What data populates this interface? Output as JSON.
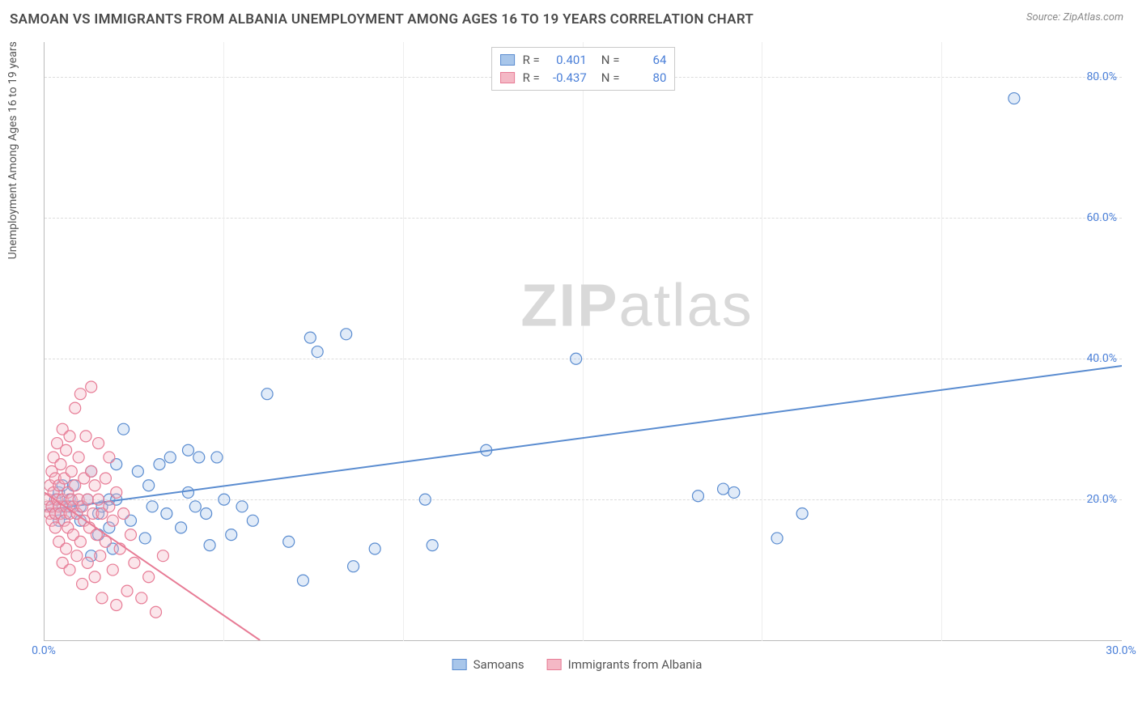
{
  "header": {
    "title": "SAMOAN VS IMMIGRANTS FROM ALBANIA UNEMPLOYMENT AMONG AGES 16 TO 19 YEARS CORRELATION CHART",
    "source_prefix": "Source: ",
    "source_link": "ZipAtlas.com"
  },
  "chart": {
    "type": "scatter",
    "ylabel": "Unemployment Among Ages 16 to 19 years",
    "xlim": [
      0,
      30
    ],
    "ylim": [
      0,
      85
    ],
    "yticks": [
      20,
      40,
      60,
      80
    ],
    "ytick_labels": [
      "20.0%",
      "40.0%",
      "60.0%",
      "80.0%"
    ],
    "xticks": [
      0,
      30
    ],
    "xtick_labels": [
      "0.0%",
      "30.0%"
    ],
    "xgrid_positions": [
      5,
      10,
      15,
      20,
      25
    ],
    "background_color": "#ffffff",
    "grid_color": "#dddddd",
    "axis_color": "#bbbbbb",
    "tick_label_color": "#4a7fd8",
    "watermark": "ZIPatlas",
    "marker_radius": 7,
    "series": [
      {
        "name": "Samoans",
        "color_fill": "#a8c6ea",
        "color_stroke": "#5a8cd0",
        "r": 0.401,
        "n": 64,
        "trend": {
          "x1": 0,
          "y1": 18.5,
          "x2": 30,
          "y2": 39
        },
        "points": [
          [
            0.2,
            19
          ],
          [
            0.3,
            18
          ],
          [
            0.3,
            20
          ],
          [
            0.4,
            21
          ],
          [
            0.4,
            17
          ],
          [
            0.5,
            19
          ],
          [
            0.5,
            22
          ],
          [
            0.6,
            18
          ],
          [
            0.7,
            20
          ],
          [
            0.7,
            19
          ],
          [
            0.8,
            22
          ],
          [
            0.9,
            18
          ],
          [
            1.0,
            19
          ],
          [
            1.0,
            17
          ],
          [
            1.2,
            20
          ],
          [
            1.3,
            24
          ],
          [
            1.3,
            12
          ],
          [
            1.5,
            18
          ],
          [
            1.5,
            15
          ],
          [
            1.6,
            19
          ],
          [
            1.8,
            20
          ],
          [
            1.8,
            16
          ],
          [
            1.9,
            13
          ],
          [
            2.0,
            25
          ],
          [
            2.0,
            20
          ],
          [
            2.2,
            30
          ],
          [
            2.4,
            17
          ],
          [
            2.6,
            24
          ],
          [
            2.8,
            14.5
          ],
          [
            2.9,
            22
          ],
          [
            3.0,
            19
          ],
          [
            3.2,
            25
          ],
          [
            3.4,
            18
          ],
          [
            3.5,
            26
          ],
          [
            3.8,
            16
          ],
          [
            4.0,
            27
          ],
          [
            4.0,
            21
          ],
          [
            4.2,
            19
          ],
          [
            4.3,
            26
          ],
          [
            4.5,
            18
          ],
          [
            4.6,
            13.5
          ],
          [
            4.8,
            26
          ],
          [
            5.0,
            20
          ],
          [
            5.2,
            15
          ],
          [
            5.5,
            19
          ],
          [
            5.8,
            17
          ],
          [
            6.2,
            35
          ],
          [
            6.8,
            14
          ],
          [
            7.2,
            8.5
          ],
          [
            7.4,
            43
          ],
          [
            7.6,
            41
          ],
          [
            8.4,
            43.5
          ],
          [
            8.6,
            10.5
          ],
          [
            9.2,
            13
          ],
          [
            10.6,
            20
          ],
          [
            10.8,
            13.5
          ],
          [
            12.3,
            27
          ],
          [
            14.8,
            40
          ],
          [
            18.2,
            20.5
          ],
          [
            18.9,
            21.5
          ],
          [
            19.2,
            21
          ],
          [
            20.4,
            14.5
          ],
          [
            21.1,
            18
          ],
          [
            27,
            77
          ]
        ]
      },
      {
        "name": "Immigrants from Albania",
        "color_fill": "#f4b8c5",
        "color_stroke": "#e77b95",
        "r": -0.437,
        "n": 80,
        "trend": {
          "x1": 0,
          "y1": 21,
          "x2": 6,
          "y2": 0
        },
        "points": [
          [
            0.1,
            19
          ],
          [
            0.1,
            20
          ],
          [
            0.15,
            22
          ],
          [
            0.15,
            18
          ],
          [
            0.2,
            24
          ],
          [
            0.2,
            19
          ],
          [
            0.2,
            17
          ],
          [
            0.25,
            21
          ],
          [
            0.25,
            26
          ],
          [
            0.3,
            18
          ],
          [
            0.3,
            23
          ],
          [
            0.3,
            16
          ],
          [
            0.35,
            20
          ],
          [
            0.35,
            28
          ],
          [
            0.4,
            19
          ],
          [
            0.4,
            14
          ],
          [
            0.4,
            22
          ],
          [
            0.45,
            25
          ],
          [
            0.45,
            18
          ],
          [
            0.5,
            30
          ],
          [
            0.5,
            20
          ],
          [
            0.5,
            11
          ],
          [
            0.55,
            17
          ],
          [
            0.55,
            23
          ],
          [
            0.6,
            19
          ],
          [
            0.6,
            27
          ],
          [
            0.6,
            13
          ],
          [
            0.65,
            21
          ],
          [
            0.65,
            16
          ],
          [
            0.7,
            29
          ],
          [
            0.7,
            18
          ],
          [
            0.7,
            10
          ],
          [
            0.75,
            20
          ],
          [
            0.75,
            24
          ],
          [
            0.8,
            15
          ],
          [
            0.8,
            19
          ],
          [
            0.85,
            22
          ],
          [
            0.85,
            33
          ],
          [
            0.9,
            18
          ],
          [
            0.9,
            12
          ],
          [
            0.95,
            26
          ],
          [
            0.95,
            20
          ],
          [
            1.0,
            14
          ],
          [
            1.0,
            35
          ],
          [
            1.05,
            19
          ],
          [
            1.05,
            8
          ],
          [
            1.1,
            23
          ],
          [
            1.1,
            17
          ],
          [
            1.15,
            29
          ],
          [
            1.2,
            20
          ],
          [
            1.2,
            11
          ],
          [
            1.25,
            16
          ],
          [
            1.3,
            24
          ],
          [
            1.3,
            36
          ],
          [
            1.35,
            18
          ],
          [
            1.4,
            9
          ],
          [
            1.4,
            22
          ],
          [
            1.45,
            15
          ],
          [
            1.5,
            20
          ],
          [
            1.5,
            28
          ],
          [
            1.55,
            12
          ],
          [
            1.6,
            18
          ],
          [
            1.6,
            6
          ],
          [
            1.7,
            23
          ],
          [
            1.7,
            14
          ],
          [
            1.8,
            19
          ],
          [
            1.8,
            26
          ],
          [
            1.9,
            10
          ],
          [
            1.9,
            17
          ],
          [
            2.0,
            21
          ],
          [
            2.0,
            5
          ],
          [
            2.1,
            13
          ],
          [
            2.2,
            18
          ],
          [
            2.3,
            7
          ],
          [
            2.4,
            15
          ],
          [
            2.5,
            11
          ],
          [
            2.7,
            6
          ],
          [
            2.9,
            9
          ],
          [
            3.1,
            4
          ],
          [
            3.3,
            12
          ]
        ]
      }
    ],
    "legend_top_labels": {
      "r": "R =",
      "n": "N ="
    },
    "legend_bottom": [
      "Samoans",
      "Immigrants from Albania"
    ]
  }
}
